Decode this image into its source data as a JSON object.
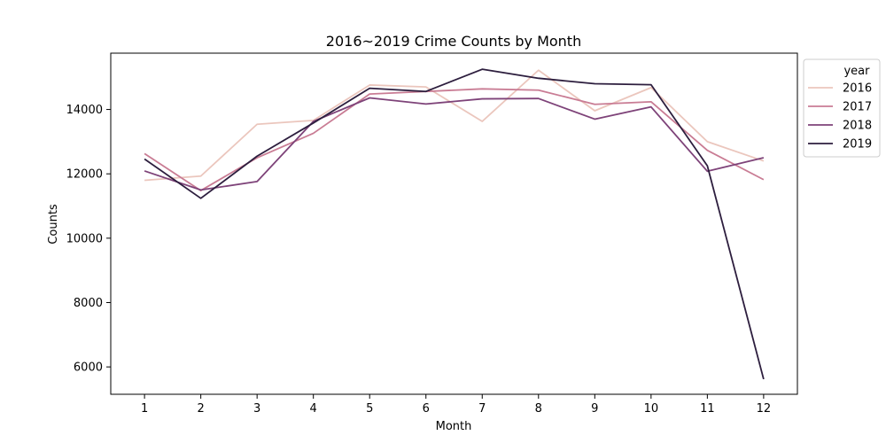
{
  "chart_data": {
    "type": "line",
    "title": "2016~2019 Crime Counts by Month",
    "xlabel": "Month",
    "ylabel": "Counts",
    "categories": [
      1,
      2,
      3,
      4,
      5,
      6,
      7,
      8,
      9,
      10,
      11,
      12
    ],
    "x_tick_labels": [
      "1",
      "2",
      "3",
      "4",
      "5",
      "6",
      "7",
      "8",
      "9",
      "10",
      "11",
      "12"
    ],
    "y_ticks": [
      6000,
      8000,
      10000,
      12000,
      14000
    ],
    "y_tick_labels": [
      "6000",
      "8000",
      "10000",
      "12000",
      "14000"
    ],
    "xlim": [
      0.4,
      12.6
    ],
    "ylim": [
      5150,
      15750
    ],
    "grid": false,
    "legend": {
      "title": "year",
      "placement": "outside-top-right"
    },
    "series": [
      {
        "name": "2016",
        "color": "#ebc6bd",
        "values": [
          11800,
          11930,
          13540,
          13660,
          14760,
          14700,
          13630,
          15220,
          13960,
          14680,
          13000,
          12400
        ]
      },
      {
        "name": "2017",
        "color": "#c97c94",
        "values": [
          12630,
          11480,
          12500,
          13260,
          14480,
          14560,
          14640,
          14600,
          14160,
          14240,
          12730,
          11820
        ]
      },
      {
        "name": "2018",
        "color": "#7e4379",
        "values": [
          12090,
          11500,
          11760,
          13630,
          14360,
          14170,
          14330,
          14340,
          13700,
          14080,
          12080,
          12500
        ]
      },
      {
        "name": "2019",
        "color": "#2d1e3e",
        "values": [
          12460,
          11240,
          12550,
          13580,
          14660,
          14560,
          15250,
          14970,
          14800,
          14770,
          12250,
          5620
        ]
      }
    ]
  }
}
